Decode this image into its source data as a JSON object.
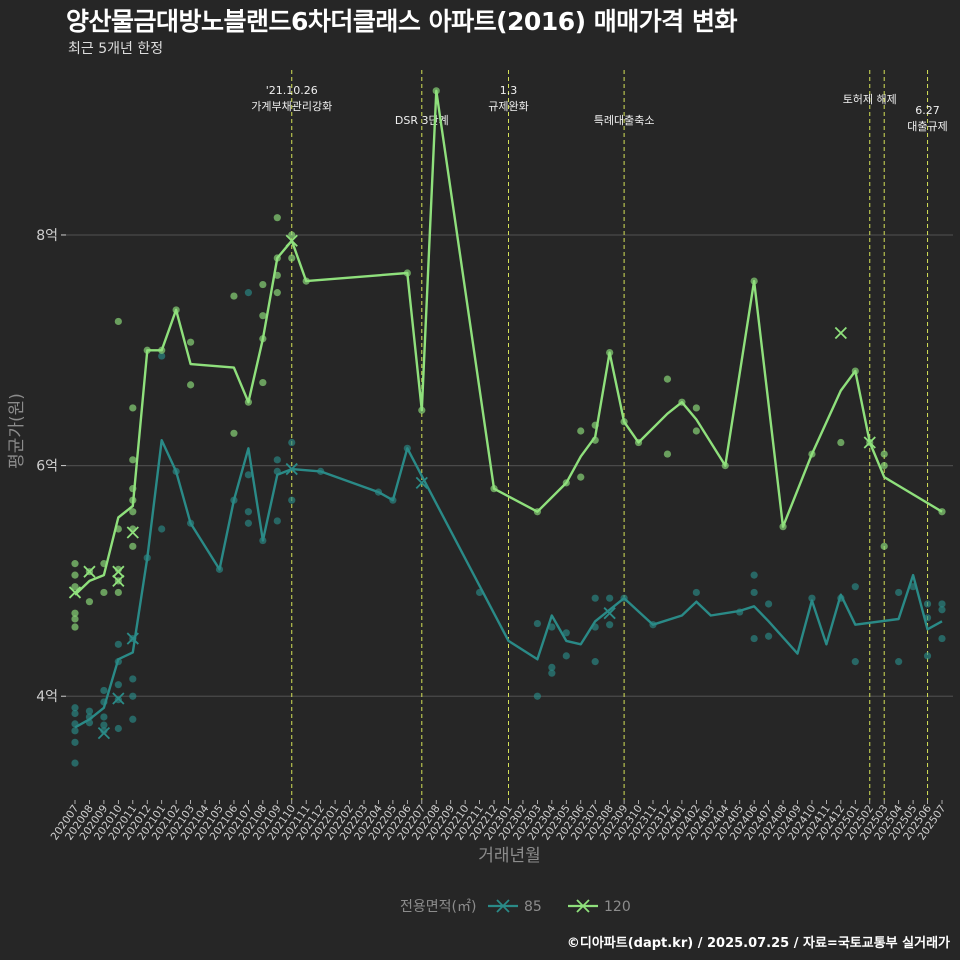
{
  "title": "양산물금대방노블랜드6차더클래스 아파트(2016) 매매가격 변화",
  "subtitle": "최근 5개년 한정",
  "credit": "©디아파트(dapt.kr) / 2025.07.25 / 자료=국토교통부 실거래가",
  "colors": {
    "background": "#262626",
    "grid": "#4a4a4a",
    "event_line": "#d4e157",
    "series_85": "#2a8a87",
    "series_120": "#8fe07c",
    "axis_text": "#cfcfcf",
    "axis_title": "#8c8c8c"
  },
  "chart_data": {
    "type": "line",
    "xlabel": "거래년월",
    "ylabel": "평균가(원)",
    "ylim": [
      3.1,
      9.5
    ],
    "y_ticks": [
      {
        "value": 4,
        "label": "4억"
      },
      {
        "value": 6,
        "label": "6억"
      },
      {
        "value": 8,
        "label": "8억"
      }
    ],
    "x_categories": [
      "202007",
      "202008",
      "202009",
      "202010",
      "202011",
      "202012",
      "202101",
      "202102",
      "202103",
      "202104",
      "202105",
      "202106",
      "202107",
      "202108",
      "202109",
      "202110",
      "202111",
      "202112",
      "202201",
      "202202",
      "202203",
      "202204",
      "202205",
      "202206",
      "202207",
      "202208",
      "202209",
      "202210",
      "202211",
      "202212",
      "202301",
      "202302",
      "202303",
      "202304",
      "202305",
      "202306",
      "202307",
      "202308",
      "202309",
      "202310",
      "202311",
      "202312",
      "202401",
      "202402",
      "202403",
      "202404",
      "202405",
      "202406",
      "202407",
      "202408",
      "202409",
      "202410",
      "202411",
      "202412",
      "202501",
      "202502",
      "202503",
      "202504",
      "202505",
      "202506",
      "202507"
    ],
    "legend": {
      "title": "전용면적(㎡)",
      "position": "bottom"
    },
    "events": [
      {
        "date": "202110",
        "label_lines": [
          "'21.10.26",
          "가계부채관리강화"
        ]
      },
      {
        "date": "202207",
        "label_lines": [
          "DSR 3단계"
        ]
      },
      {
        "date": "202301",
        "label_lines": [
          "1.3",
          "규제완화"
        ]
      },
      {
        "date": "202309",
        "label_lines": [
          "특례대출축소"
        ]
      },
      {
        "date": "202502",
        "label_lines": [
          "토허제 해제"
        ]
      },
      {
        "date": "202503",
        "label_lines": []
      },
      {
        "date": "202506",
        "label_lines": [
          "6.27",
          "대출규제"
        ]
      }
    ],
    "series": [
      {
        "name": "85",
        "color": "#2a8a87",
        "line": [
          [
            "202007",
            3.73
          ],
          [
            "202008",
            3.8
          ],
          [
            "202009",
            3.9
          ],
          [
            "202010",
            4.32
          ],
          [
            "202011",
            4.38
          ],
          [
            "202012",
            5.2
          ],
          [
            "202101",
            6.22
          ],
          [
            "202102",
            5.95
          ],
          [
            "202103",
            5.5
          ],
          [
            "202105",
            5.1
          ],
          [
            "202106",
            5.7
          ],
          [
            "202107",
            6.15
          ],
          [
            "202108",
            5.35
          ],
          [
            "202109",
            5.92
          ],
          [
            "202110",
            5.97
          ],
          [
            "202112",
            5.95
          ],
          [
            "202204",
            5.77
          ],
          [
            "202205",
            5.7
          ],
          [
            "202206",
            6.15
          ],
          [
            "202301",
            4.48
          ],
          [
            "202303",
            4.32
          ],
          [
            "202304",
            4.7
          ],
          [
            "202305",
            4.48
          ],
          [
            "202306",
            4.45
          ],
          [
            "202307",
            4.65
          ],
          [
            "202309",
            4.85
          ],
          [
            "202311",
            4.62
          ],
          [
            "202401",
            4.7
          ],
          [
            "202402",
            4.82
          ],
          [
            "202403",
            4.7
          ],
          [
            "202405",
            4.74
          ],
          [
            "202406",
            4.78
          ],
          [
            "202407",
            4.65
          ],
          [
            "202409",
            4.37
          ],
          [
            "202410",
            4.83
          ],
          [
            "202411",
            4.45
          ],
          [
            "202412",
            4.88
          ],
          [
            "202501",
            4.62
          ],
          [
            "202504",
            4.67
          ],
          [
            "202505",
            5.05
          ],
          [
            "202506",
            4.58
          ],
          [
            "202507",
            4.65
          ]
        ],
        "points": [
          [
            "202007",
            3.42
          ],
          [
            "202007",
            3.6
          ],
          [
            "202007",
            3.7
          ],
          [
            "202007",
            3.76
          ],
          [
            "202007",
            3.85
          ],
          [
            "202007",
            3.9
          ],
          [
            "202008",
            3.77
          ],
          [
            "202008",
            3.82
          ],
          [
            "202008",
            3.87
          ],
          [
            "202009",
            3.7
          ],
          [
            "202009",
            3.75
          ],
          [
            "202009",
            3.82
          ],
          [
            "202009",
            3.95
          ],
          [
            "202009",
            4.05
          ],
          [
            "202010",
            3.72
          ],
          [
            "202010",
            3.97
          ],
          [
            "202010",
            4.1
          ],
          [
            "202010",
            4.3
          ],
          [
            "202010",
            4.45
          ],
          [
            "202011",
            3.8
          ],
          [
            "202011",
            4.0
          ],
          [
            "202011",
            4.15
          ],
          [
            "202011",
            4.5
          ],
          [
            "202012",
            5.2
          ],
          [
            "202101",
            5.45
          ],
          [
            "202101",
            6.95
          ],
          [
            "202102",
            5.95
          ],
          [
            "202103",
            5.5
          ],
          [
            "202105",
            5.1
          ],
          [
            "202106",
            5.7
          ],
          [
            "202107",
            5.5
          ],
          [
            "202107",
            5.6
          ],
          [
            "202107",
            5.92
          ],
          [
            "202107",
            7.5
          ],
          [
            "202108",
            5.35
          ],
          [
            "202109",
            5.52
          ],
          [
            "202109",
            5.95
          ],
          [
            "202109",
            6.05
          ],
          [
            "202110",
            5.7
          ],
          [
            "202110",
            6.2
          ],
          [
            "202112",
            5.95
          ],
          [
            "202204",
            5.77
          ],
          [
            "202205",
            5.7
          ],
          [
            "202206",
            6.15
          ],
          [
            "202211",
            4.9
          ],
          [
            "202303",
            4.0
          ],
          [
            "202303",
            4.63
          ],
          [
            "202304",
            4.2
          ],
          [
            "202304",
            4.25
          ],
          [
            "202304",
            4.6
          ],
          [
            "202305",
            4.35
          ],
          [
            "202305",
            4.55
          ],
          [
            "202307",
            4.3
          ],
          [
            "202307",
            4.6
          ],
          [
            "202307",
            4.85
          ],
          [
            "202308",
            4.62
          ],
          [
            "202308",
            4.85
          ],
          [
            "202309",
            4.85
          ],
          [
            "202311",
            4.62
          ],
          [
            "202402",
            4.9
          ],
          [
            "202405",
            4.73
          ],
          [
            "202406",
            4.5
          ],
          [
            "202406",
            4.9
          ],
          [
            "202406",
            5.05
          ],
          [
            "202407",
            4.52
          ],
          [
            "202407",
            4.8
          ],
          [
            "202410",
            4.85
          ],
          [
            "202412",
            4.85
          ],
          [
            "202501",
            4.3
          ],
          [
            "202501",
            4.95
          ],
          [
            "202504",
            4.3
          ],
          [
            "202504",
            4.9
          ],
          [
            "202505",
            4.95
          ],
          [
            "202506",
            4.35
          ],
          [
            "202506",
            4.68
          ],
          [
            "202506",
            4.8
          ],
          [
            "202507",
            4.5
          ],
          [
            "202507",
            4.75
          ],
          [
            "202507",
            4.8
          ]
        ],
        "markers": [
          [
            "202009",
            3.68
          ],
          [
            "202010",
            3.98
          ],
          [
            "202011",
            4.5
          ],
          [
            "202110",
            5.97
          ],
          [
            "202207",
            5.85
          ],
          [
            "202308",
            4.72
          ]
        ]
      },
      {
        "name": "120",
        "color": "#8fe07c",
        "line": [
          [
            "202007",
            4.88
          ],
          [
            "202008",
            5.0
          ],
          [
            "202009",
            5.05
          ],
          [
            "202010",
            5.55
          ],
          [
            "202011",
            5.65
          ],
          [
            "202012",
            7.0
          ],
          [
            "202101",
            7.0
          ],
          [
            "202102",
            7.35
          ],
          [
            "202103",
            6.88
          ],
          [
            "202106",
            6.85
          ],
          [
            "202107",
            6.55
          ],
          [
            "202108",
            7.1
          ],
          [
            "202109",
            7.8
          ],
          [
            "202110",
            7.95
          ],
          [
            "202111",
            7.6
          ],
          [
            "202206",
            7.67
          ],
          [
            "202207",
            6.48
          ],
          [
            "202208",
            9.25
          ],
          [
            "202212",
            5.8
          ],
          [
            "202303",
            5.6
          ],
          [
            "202305",
            5.85
          ],
          [
            "202306",
            6.08
          ],
          [
            "202307",
            6.25
          ],
          [
            "202308",
            6.98
          ],
          [
            "202309",
            6.38
          ],
          [
            "202310",
            6.2
          ],
          [
            "202312",
            6.45
          ],
          [
            "202401",
            6.55
          ],
          [
            "202402",
            6.4
          ],
          [
            "202404",
            6.0
          ],
          [
            "202406",
            7.6
          ],
          [
            "202408",
            5.47
          ],
          [
            "202410",
            6.1
          ],
          [
            "202412",
            6.65
          ],
          [
            "202501",
            6.82
          ],
          [
            "202502",
            6.2
          ],
          [
            "202503",
            5.9
          ],
          [
            "202507",
            5.6
          ]
        ],
        "points": [
          [
            "202007",
            4.6
          ],
          [
            "202007",
            4.67
          ],
          [
            "202007",
            4.72
          ],
          [
            "202007",
            4.95
          ],
          [
            "202007",
            5.05
          ],
          [
            "202007",
            5.15
          ],
          [
            "202008",
            4.82
          ],
          [
            "202008",
            5.08
          ],
          [
            "202009",
            4.9
          ],
          [
            "202009",
            5.15
          ],
          [
            "202010",
            4.9
          ],
          [
            "202010",
            5.0
          ],
          [
            "202010",
            5.1
          ],
          [
            "202010",
            5.45
          ],
          [
            "202010",
            7.25
          ],
          [
            "202011",
            5.3
          ],
          [
            "202011",
            5.45
          ],
          [
            "202011",
            5.6
          ],
          [
            "202011",
            5.7
          ],
          [
            "202011",
            5.8
          ],
          [
            "202011",
            6.05
          ],
          [
            "202011",
            6.5
          ],
          [
            "202012",
            7.0
          ],
          [
            "202101",
            7.0
          ],
          [
            "202102",
            7.35
          ],
          [
            "202103",
            6.7
          ],
          [
            "202103",
            7.07
          ],
          [
            "202106",
            6.28
          ],
          [
            "202106",
            7.47
          ],
          [
            "202107",
            6.55
          ],
          [
            "202108",
            6.72
          ],
          [
            "202108",
            7.1
          ],
          [
            "202108",
            7.3
          ],
          [
            "202108",
            7.57
          ],
          [
            "202109",
            7.5
          ],
          [
            "202109",
            7.65
          ],
          [
            "202109",
            7.8
          ],
          [
            "202109",
            8.15
          ],
          [
            "202110",
            7.8
          ],
          [
            "202110",
            8.0
          ],
          [
            "202111",
            7.6
          ],
          [
            "202206",
            7.67
          ],
          [
            "202207",
            6.48
          ],
          [
            "202208",
            9.25
          ],
          [
            "202212",
            5.8
          ],
          [
            "202303",
            5.6
          ],
          [
            "202305",
            5.85
          ],
          [
            "202306",
            5.9
          ],
          [
            "202306",
            6.3
          ],
          [
            "202307",
            6.22
          ],
          [
            "202307",
            6.35
          ],
          [
            "202308",
            6.98
          ],
          [
            "202309",
            6.38
          ],
          [
            "202310",
            6.2
          ],
          [
            "202312",
            6.1
          ],
          [
            "202312",
            6.75
          ],
          [
            "202401",
            6.55
          ],
          [
            "202402",
            6.3
          ],
          [
            "202402",
            6.5
          ],
          [
            "202404",
            6.0
          ],
          [
            "202406",
            7.6
          ],
          [
            "202408",
            5.47
          ],
          [
            "202410",
            6.1
          ],
          [
            "202412",
            6.2
          ],
          [
            "202501",
            6.82
          ],
          [
            "202502",
            6.2
          ],
          [
            "202503",
            5.3
          ],
          [
            "202503",
            6.0
          ],
          [
            "202503",
            6.1
          ],
          [
            "202507",
            5.6
          ]
        ],
        "markers": [
          [
            "202007",
            4.9
          ],
          [
            "202008",
            5.08
          ],
          [
            "202010",
            5.0
          ],
          [
            "202010",
            5.08
          ],
          [
            "202011",
            5.42
          ],
          [
            "202110",
            7.95
          ],
          [
            "202412",
            7.15
          ],
          [
            "202502",
            6.2
          ]
        ]
      }
    ]
  }
}
